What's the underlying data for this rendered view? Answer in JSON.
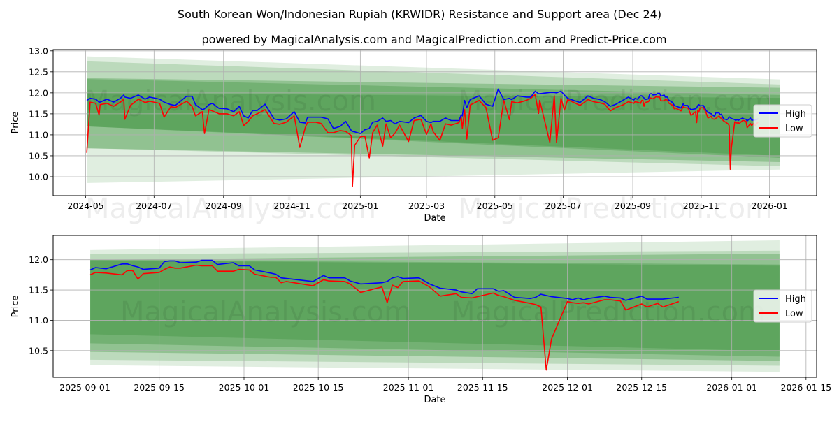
{
  "title": "South Korean Won/Indonesian Rupiah (KRWIDR) Resistance and Support area (Dec 24)",
  "subtitle": "powered by MagicalAnalysis.com and MagicalPrediction.com and Predict-Price.com",
  "watermarks": [
    "MagicalAnalysis.com",
    "MagicalPrediction.com"
  ],
  "colors": {
    "high": "#0000ff",
    "low": "#ff0000",
    "band": "#2e8b2e"
  },
  "chart_data": [
    {
      "type": "line",
      "xlabel": "Date",
      "ylabel": "Price",
      "xlim": [
        "2024-04-02",
        "2026-02-12"
      ],
      "ylim": [
        9.55,
        13.03
      ],
      "grid": true,
      "legend": {
        "placement": "right",
        "entries": [
          "High",
          "Low"
        ]
      },
      "xticks": [
        {
          "date": "2024-05-01",
          "label": "2024-05"
        },
        {
          "date": "2024-07-01",
          "label": "2024-07"
        },
        {
          "date": "2024-09-01",
          "label": "2024-09"
        },
        {
          "date": "2024-11-01",
          "label": "2024-11"
        },
        {
          "date": "2025-01-01",
          "label": "2025-01"
        },
        {
          "date": "2025-03-01",
          "label": "2025-03"
        },
        {
          "date": "2025-05-01",
          "label": "2025-05"
        },
        {
          "date": "2025-07-01",
          "label": "2025-07"
        },
        {
          "date": "2025-09-01",
          "label": "2025-09"
        },
        {
          "date": "2025-11-01",
          "label": "2025-11"
        },
        {
          "date": "2026-01-01",
          "label": "2026-01"
        }
      ],
      "yticks": [
        "10.0",
        "10.5",
        "11.0",
        "11.5",
        "12.0",
        "12.5",
        "13.0"
      ],
      "bands": {
        "start": "2024-05-02",
        "end": "2026-01-10",
        "items": [
          {
            "upper": [
              12.87,
              12.32
            ],
            "lower": [
              9.85,
              10.17
            ],
            "opacity": 0.15
          },
          {
            "upper": [
              12.75,
              12.2
            ],
            "lower": [
              10.68,
              10.25
            ],
            "opacity": 0.2
          },
          {
            "upper": [
              12.35,
              12.12
            ],
            "lower": [
              10.68,
              10.35
            ],
            "opacity": 0.3
          },
          {
            "upper": [
              12.33,
              11.95
            ],
            "lower": [
              11.2,
              10.45
            ],
            "opacity": 0.3
          },
          {
            "upper": [
              12.0,
              11.88
            ],
            "lower": [
              11.2,
              10.5
            ],
            "opacity": 0.3
          }
        ]
      },
      "series_from": "2024-05-01"
    },
    {
      "type": "line",
      "xlabel": "Date",
      "ylabel": "Price",
      "xlim": [
        "2025-08-26",
        "2026-01-17"
      ],
      "ylim": [
        10.06,
        12.4
      ],
      "grid": true,
      "legend": {
        "placement": "right",
        "entries": [
          "High",
          "Low"
        ]
      },
      "xticks": [
        {
          "date": "2025-09-01",
          "label": "2025-09-01"
        },
        {
          "date": "2025-09-15",
          "label": "2025-09-15"
        },
        {
          "date": "2025-10-01",
          "label": "2025-10-01"
        },
        {
          "date": "2025-10-15",
          "label": "2025-10-15"
        },
        {
          "date": "2025-11-01",
          "label": "2025-11-01"
        },
        {
          "date": "2025-11-15",
          "label": "2025-11-15"
        },
        {
          "date": "2025-12-01",
          "label": "2025-12-01"
        },
        {
          "date": "2025-12-15",
          "label": "2025-12-15"
        },
        {
          "date": "2026-01-01",
          "label": "2026-01-01"
        },
        {
          "date": "2026-01-15",
          "label": "2026-01-15"
        }
      ],
      "yticks": [
        "10.5",
        "11.0",
        "11.5",
        "12.0"
      ],
      "bands": {
        "start": "2025-09-02",
        "end": "2026-01-10",
        "items": [
          {
            "upper": [
              12.16,
              12.32
            ],
            "lower": [
              10.26,
              10.15
            ],
            "opacity": 0.15
          },
          {
            "upper": [
              12.09,
              12.15
            ],
            "lower": [
              10.35,
              10.25
            ],
            "opacity": 0.2
          },
          {
            "upper": [
              12.0,
              12.1
            ],
            "lower": [
              10.48,
              10.33
            ],
            "opacity": 0.3
          },
          {
            "upper": [
              12.0,
              11.92
            ],
            "lower": [
              10.62,
              10.4
            ],
            "opacity": 0.3
          },
          {
            "upper": [
              11.99,
              11.9
            ],
            "lower": [
              10.77,
              10.49
            ],
            "opacity": 0.3
          }
        ]
      },
      "series_from": "2025-09-01"
    }
  ],
  "series": {
    "columns": [
      "date",
      "high",
      "low"
    ],
    "rows": [
      [
        "2024-05-02",
        11.82,
        10.57
      ],
      [
        "2024-05-05",
        11.87,
        11.78
      ],
      [
        "2024-05-10",
        11.85,
        11.75
      ],
      [
        "2024-05-13",
        11.78,
        11.47
      ],
      [
        "2024-05-14",
        11.78,
        11.72
      ],
      [
        "2024-05-20",
        11.85,
        11.75
      ],
      [
        "2024-05-26",
        11.78,
        11.68
      ],
      [
        "2024-06-01",
        11.87,
        11.78
      ],
      [
        "2024-06-04",
        11.95,
        11.85
      ],
      [
        "2024-06-05",
        11.9,
        11.37
      ],
      [
        "2024-06-10",
        11.87,
        11.7
      ],
      [
        "2024-06-17",
        11.95,
        11.85
      ],
      [
        "2024-06-23",
        11.85,
        11.77
      ],
      [
        "2024-06-27",
        11.9,
        11.8
      ],
      [
        "2024-07-06",
        11.85,
        11.75
      ],
      [
        "2024-07-10",
        11.78,
        11.42
      ],
      [
        "2024-07-16",
        11.72,
        11.67
      ],
      [
        "2024-07-20",
        11.7,
        11.65
      ],
      [
        "2024-07-30",
        11.92,
        11.8
      ],
      [
        "2024-08-04",
        11.92,
        11.68
      ],
      [
        "2024-08-07",
        11.72,
        11.45
      ],
      [
        "2024-08-13",
        11.6,
        11.55
      ],
      [
        "2024-08-15",
        11.62,
        11.03
      ],
      [
        "2024-08-19",
        11.72,
        11.6
      ],
      [
        "2024-08-22",
        11.75,
        11.57
      ],
      [
        "2024-08-28",
        11.63,
        11.5
      ],
      [
        "2024-09-04",
        11.62,
        11.5
      ],
      [
        "2024-09-10",
        11.55,
        11.45
      ],
      [
        "2024-09-15",
        11.68,
        11.55
      ],
      [
        "2024-09-19",
        11.45,
        11.22
      ],
      [
        "2024-09-23",
        11.4,
        11.32
      ],
      [
        "2024-09-27",
        11.58,
        11.45
      ],
      [
        "2024-10-01",
        11.58,
        11.5
      ],
      [
        "2024-10-08",
        11.73,
        11.6
      ],
      [
        "2024-10-16",
        11.38,
        11.27
      ],
      [
        "2024-10-21",
        11.35,
        11.25
      ],
      [
        "2024-10-27",
        11.38,
        11.3
      ],
      [
        "2024-11-03",
        11.55,
        11.45
      ],
      [
        "2024-11-08",
        11.3,
        10.7
      ],
      [
        "2024-11-13",
        11.28,
        11.18
      ],
      [
        "2024-11-15",
        11.42,
        11.3
      ],
      [
        "2024-11-22",
        11.42,
        11.3
      ],
      [
        "2024-11-27",
        11.42,
        11.27
      ],
      [
        "2024-12-03",
        11.38,
        11.05
      ],
      [
        "2024-12-08",
        11.15,
        11.05
      ],
      [
        "2024-12-14",
        11.2,
        11.1
      ],
      [
        "2024-12-19",
        11.32,
        11.08
      ],
      [
        "2024-12-24",
        11.1,
        10.98
      ],
      [
        "2024-12-25",
        11.08,
        9.77
      ],
      [
        "2024-12-27",
        11.07,
        10.75
      ],
      [
        "2025-01-01",
        11.03,
        10.95
      ],
      [
        "2025-01-05",
        11.12,
        10.97
      ],
      [
        "2025-01-09",
        11.15,
        10.45
      ],
      [
        "2025-01-12",
        11.3,
        11.05
      ],
      [
        "2025-01-16",
        11.32,
        11.23
      ],
      [
        "2025-01-21",
        11.4,
        10.73
      ],
      [
        "2025-01-24",
        11.32,
        11.26
      ],
      [
        "2025-01-28",
        11.34,
        10.93
      ],
      [
        "2025-02-01",
        11.26,
        11.04
      ],
      [
        "2025-02-05",
        11.32,
        11.23
      ],
      [
        "2025-02-13",
        11.29,
        10.84
      ],
      [
        "2025-02-18",
        11.4,
        11.34
      ],
      [
        "2025-02-24",
        11.46,
        11.37
      ],
      [
        "2025-03-01",
        11.32,
        11.01
      ],
      [
        "2025-03-05",
        11.29,
        11.26
      ],
      [
        "2025-03-07",
        11.32,
        11.07
      ],
      [
        "2025-03-13",
        11.32,
        10.87
      ],
      [
        "2025-03-18",
        11.4,
        11.26
      ],
      [
        "2025-03-23",
        11.34,
        11.23
      ],
      [
        "2025-03-30",
        11.34,
        11.29
      ],
      [
        "2025-04-01",
        11.48,
        11.43
      ],
      [
        "2025-04-02",
        11.45,
        11.15
      ],
      [
        "2025-04-04",
        11.82,
        11.6
      ],
      [
        "2025-04-06",
        11.65,
        10.9
      ],
      [
        "2025-04-09",
        11.84,
        11.71
      ],
      [
        "2025-04-17",
        11.93,
        11.82
      ],
      [
        "2025-04-23",
        11.73,
        11.65
      ],
      [
        "2025-04-29",
        11.68,
        10.87
      ],
      [
        "2025-05-04",
        12.09,
        10.93
      ],
      [
        "2025-05-09",
        11.84,
        11.82
      ],
      [
        "2025-05-14",
        11.87,
        11.36
      ],
      [
        "2025-05-16",
        11.84,
        11.79
      ],
      [
        "2025-05-21",
        11.93,
        11.76
      ],
      [
        "2025-05-29",
        11.9,
        11.82
      ],
      [
        "2025-06-02",
        11.9,
        11.87
      ],
      [
        "2025-06-06",
        12.04,
        11.96
      ],
      [
        "2025-06-09",
        11.98,
        11.51
      ],
      [
        "2025-06-10",
        11.98,
        11.82
      ],
      [
        "2025-06-19",
        12.01,
        10.82
      ],
      [
        "2025-06-23",
        12.01,
        11.93
      ],
      [
        "2025-06-25",
        12.0,
        10.82
      ],
      [
        "2025-06-29",
        12.04,
        11.87
      ],
      [
        "2025-07-02",
        11.95,
        11.59
      ],
      [
        "2025-07-05",
        11.87,
        11.84
      ],
      [
        "2025-07-16",
        11.77,
        11.7
      ],
      [
        "2025-07-23",
        11.93,
        11.84
      ],
      [
        "2025-07-28",
        11.87,
        11.79
      ],
      [
        "2025-08-03",
        11.84,
        11.76
      ],
      [
        "2025-08-07",
        11.79,
        11.73
      ],
      [
        "2025-08-12",
        11.68,
        11.57
      ],
      [
        "2025-08-17",
        11.73,
        11.65
      ],
      [
        "2025-08-23",
        11.82,
        11.71
      ],
      [
        "2025-08-28",
        11.9,
        11.79
      ],
      [
        "2025-09-02",
        11.83,
        11.75
      ],
      [
        "2025-09-03",
        11.87,
        11.79
      ],
      [
        "2025-09-05",
        11.85,
        11.78
      ],
      [
        "2025-09-08",
        11.93,
        11.75
      ],
      [
        "2025-09-09",
        11.93,
        11.82
      ],
      [
        "2025-09-10",
        11.9,
        11.82
      ],
      [
        "2025-09-11",
        11.88,
        11.68
      ],
      [
        "2025-09-12",
        11.84,
        11.77
      ],
      [
        "2025-09-15",
        11.86,
        11.79
      ],
      [
        "2025-09-16",
        11.97,
        11.84
      ],
      [
        "2025-09-17",
        11.98,
        11.88
      ],
      [
        "2025-09-18",
        11.98,
        11.86
      ],
      [
        "2025-09-19",
        11.95,
        11.86
      ],
      [
        "2025-09-22",
        11.96,
        11.91
      ],
      [
        "2025-09-23",
        11.99,
        11.9
      ],
      [
        "2025-09-24",
        11.99,
        11.9
      ],
      [
        "2025-09-25",
        11.99,
        11.9
      ],
      [
        "2025-09-26",
        11.92,
        11.81
      ],
      [
        "2025-09-29",
        11.95,
        11.81
      ],
      [
        "2025-09-30",
        11.9,
        11.84
      ],
      [
        "2025-10-02",
        11.9,
        11.83
      ],
      [
        "2025-10-03",
        11.83,
        11.76
      ],
      [
        "2025-10-06",
        11.78,
        11.71
      ],
      [
        "2025-10-07",
        11.76,
        11.71
      ],
      [
        "2025-10-08",
        11.7,
        11.62
      ],
      [
        "2025-10-09",
        11.69,
        11.64
      ],
      [
        "2025-10-14",
        11.64,
        11.57
      ],
      [
        "2025-10-16",
        11.74,
        11.67
      ],
      [
        "2025-10-17",
        11.7,
        11.65
      ],
      [
        "2025-10-20",
        11.7,
        11.64
      ],
      [
        "2025-10-21",
        11.65,
        11.6
      ],
      [
        "2025-10-23",
        11.6,
        11.46
      ],
      [
        "2025-10-27",
        11.62,
        11.55
      ],
      [
        "2025-10-28",
        11.64,
        11.29
      ],
      [
        "2025-10-29",
        11.7,
        11.58
      ],
      [
        "2025-10-30",
        11.72,
        11.54
      ],
      [
        "2025-10-31",
        11.69,
        11.64
      ],
      [
        "2025-11-03",
        11.7,
        11.65
      ],
      [
        "2025-11-05",
        11.6,
        11.55
      ],
      [
        "2025-11-07",
        11.53,
        11.4
      ],
      [
        "2025-11-10",
        11.5,
        11.44
      ],
      [
        "2025-11-11",
        11.47,
        11.38
      ],
      [
        "2025-11-13",
        11.44,
        11.37
      ],
      [
        "2025-11-14",
        11.52,
        11.39
      ],
      [
        "2025-11-17",
        11.52,
        11.45
      ],
      [
        "2025-11-18",
        11.48,
        11.41
      ],
      [
        "2025-11-19",
        11.49,
        11.39
      ],
      [
        "2025-11-21",
        11.38,
        11.33
      ],
      [
        "2025-11-24",
        11.36,
        11.28
      ],
      [
        "2025-11-25",
        11.38,
        11.26
      ],
      [
        "2025-11-26",
        11.43,
        11.22
      ],
      [
        "2025-11-27",
        11.41,
        10.18
      ],
      [
        "2025-11-28",
        11.39,
        10.69
      ],
      [
        "2025-12-01",
        11.36,
        11.31
      ],
      [
        "2025-12-02",
        11.34,
        11.29
      ],
      [
        "2025-12-03",
        11.37,
        11.28
      ],
      [
        "2025-12-04",
        11.34,
        11.29
      ],
      [
        "2025-12-05",
        11.36,
        11.27
      ],
      [
        "2025-12-08",
        11.4,
        11.34
      ],
      [
        "2025-12-09",
        11.38,
        11.34
      ],
      [
        "2025-12-11",
        11.37,
        11.32
      ],
      [
        "2025-12-12",
        11.33,
        11.17
      ],
      [
        "2025-12-15",
        11.4,
        11.27
      ],
      [
        "2025-12-16",
        11.35,
        11.22
      ],
      [
        "2025-12-18",
        11.35,
        11.28
      ],
      [
        "2025-12-19",
        11.35,
        11.22
      ],
      [
        "2025-12-22",
        11.38,
        11.31
      ]
    ]
  }
}
